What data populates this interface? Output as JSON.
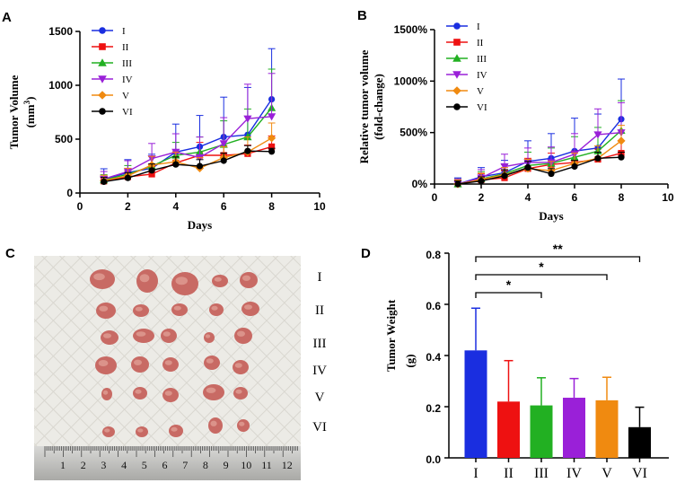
{
  "panels": {
    "a": "A",
    "b": "B",
    "c": "C",
    "d": "D"
  },
  "groups": [
    "I",
    "II",
    "III",
    "IV",
    "V",
    "VI"
  ],
  "colors": [
    "#1a2ee0",
    "#ee1111",
    "#22b022",
    "#9a20d8",
    "#f08a10",
    "#000000"
  ],
  "markers": [
    "circle",
    "square",
    "triangle-up",
    "triangle-down",
    "diamond",
    "circle"
  ],
  "chart_data": [
    {
      "type": "line",
      "title": "",
      "xlabel": "Days",
      "ylabel": "Tumor Volume",
      "ylabel_unit_base": "(mm",
      "ylabel_unit_exp": "3",
      "ylabel_unit_close": ")",
      "xlim": [
        0,
        10
      ],
      "ylim": [
        0,
        1500
      ],
      "xticks": [
        0,
        2,
        4,
        6,
        8,
        10
      ],
      "yticks": [
        0,
        500,
        1000,
        1500
      ],
      "ytick_labels": [
        "0",
        "500",
        "1000",
        "1500"
      ],
      "x": [
        1,
        2,
        3,
        4,
        5,
        6,
        7,
        8
      ],
      "series": [
        {
          "name": "I",
          "values": [
            125,
            190,
            230,
            380,
            430,
            520,
            540,
            870
          ],
          "err": [
            100,
            120,
            130,
            260,
            290,
            370,
            440,
            470
          ]
        },
        {
          "name": "II",
          "values": [
            110,
            150,
            175,
            280,
            350,
            350,
            365,
            430
          ],
          "err": [
            40,
            60,
            70,
            90,
            120,
            90,
            80,
            100
          ]
        },
        {
          "name": "III",
          "values": [
            120,
            175,
            250,
            350,
            380,
            450,
            520,
            790
          ],
          "err": [
            50,
            80,
            90,
            120,
            140,
            220,
            260,
            360
          ]
        },
        {
          "name": "IV",
          "values": [
            130,
            200,
            320,
            380,
            330,
            460,
            690,
            710
          ],
          "err": [
            70,
            100,
            140,
            170,
            190,
            240,
            320,
            400
          ]
        },
        {
          "name": "V",
          "values": [
            115,
            160,
            260,
            290,
            230,
            330,
            380,
            510
          ],
          "err": [
            50,
            70,
            80,
            90,
            100,
            100,
            140,
            140
          ]
        },
        {
          "name": "VI",
          "values": [
            105,
            140,
            210,
            265,
            250,
            300,
            390,
            385
          ],
          "err": [
            40,
            50,
            60,
            70,
            60,
            70,
            50,
            30
          ]
        }
      ]
    },
    {
      "type": "line",
      "title": "",
      "xlabel": "Days",
      "ylabel": "Relative tumor volume",
      "ylabel2": "(fold-change)",
      "xlim": [
        0,
        10
      ],
      "ylim": [
        0,
        1500
      ],
      "xticks": [
        0,
        2,
        4,
        6,
        8,
        10
      ],
      "yticks": [
        0,
        500,
        1000,
        1500
      ],
      "ytick_labels": [
        "0%",
        "500%",
        "1000%",
        "1500%"
      ],
      "x": [
        1,
        2,
        3,
        4,
        5,
        6,
        7,
        8
      ],
      "series": [
        {
          "name": "I",
          "values": [
            0,
            70,
            110,
            220,
            250,
            320,
            350,
            630
          ],
          "err": [
            60,
            90,
            120,
            200,
            240,
            320,
            330,
            390
          ]
        },
        {
          "name": "II",
          "values": [
            0,
            40,
            60,
            150,
            190,
            210,
            240,
            300
          ],
          "err": [
            40,
            60,
            70,
            100,
            110,
            110,
            100,
            120
          ]
        },
        {
          "name": "III",
          "values": [
            0,
            50,
            100,
            180,
            200,
            260,
            320,
            520
          ],
          "err": [
            50,
            70,
            90,
            130,
            150,
            200,
            230,
            290
          ]
        },
        {
          "name": "IV",
          "values": [
            0,
            60,
            170,
            210,
            210,
            290,
            480,
            500
          ],
          "err": [
            50,
            80,
            120,
            140,
            150,
            200,
            250,
            290
          ]
        },
        {
          "name": "V",
          "values": [
            0,
            45,
            90,
            150,
            130,
            200,
            250,
            420
          ],
          "err": [
            40,
            60,
            70,
            90,
            90,
            100,
            120,
            150
          ]
        },
        {
          "name": "VI",
          "values": [
            0,
            30,
            80,
            160,
            100,
            170,
            250,
            260
          ],
          "err": [
            30,
            40,
            60,
            60,
            50,
            60,
            60,
            50
          ]
        }
      ]
    },
    {
      "type": "bar",
      "title": "",
      "xlabel": "",
      "ylabel": "Tumor Weight",
      "ylabel_unit": "(g)",
      "ylim": [
        0,
        0.8
      ],
      "yticks": [
        0.0,
        0.2,
        0.4,
        0.6,
        0.8
      ],
      "ytick_labels": [
        "0.0",
        "0.2",
        "0.4",
        "0.6",
        "0.8"
      ],
      "categories": [
        "I",
        "II",
        "III",
        "IV",
        "V",
        "VI"
      ],
      "values": [
        0.42,
        0.22,
        0.205,
        0.235,
        0.225,
        0.12
      ],
      "err": [
        0.165,
        0.16,
        0.108,
        0.075,
        0.09,
        0.078
      ],
      "significance": [
        {
          "from": "I",
          "to": "III",
          "label": "*"
        },
        {
          "from": "I",
          "to": "V",
          "label": "*"
        },
        {
          "from": "I",
          "to": "VI",
          "label": "**"
        }
      ]
    }
  ],
  "photo": {
    "row_labels": [
      "I",
      "II",
      "III",
      "IV",
      "V",
      "VI"
    ],
    "ruler_numbers": [
      "1",
      "2",
      "3",
      "4",
      "5",
      "6",
      "7",
      "8",
      "9",
      "10",
      "11",
      "12"
    ]
  }
}
